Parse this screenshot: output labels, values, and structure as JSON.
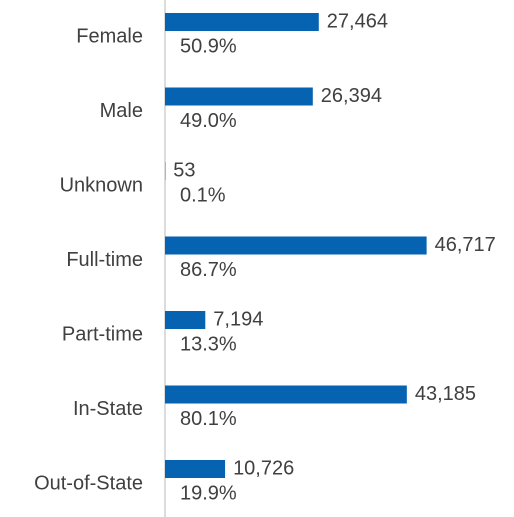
{
  "chart_data": {
    "type": "barh",
    "categories": [
      "Female",
      "Male",
      "Unknown",
      "Full-time",
      "Part-time",
      "In-State",
      "Out-of-State"
    ],
    "values": [
      27464,
      26394,
      53,
      46717,
      7194,
      43185,
      10726
    ],
    "value_labels": [
      "27,464",
      "26,394",
      "53",
      "46,717",
      "7,194",
      "43,185",
      "10,726"
    ],
    "share_labels": [
      "50.9%",
      "49.0%",
      "0.1%",
      "86.7%",
      "13.3%",
      "80.1%",
      "19.9%"
    ],
    "color": "#0563b1",
    "xlim": [
      0,
      60000
    ]
  }
}
